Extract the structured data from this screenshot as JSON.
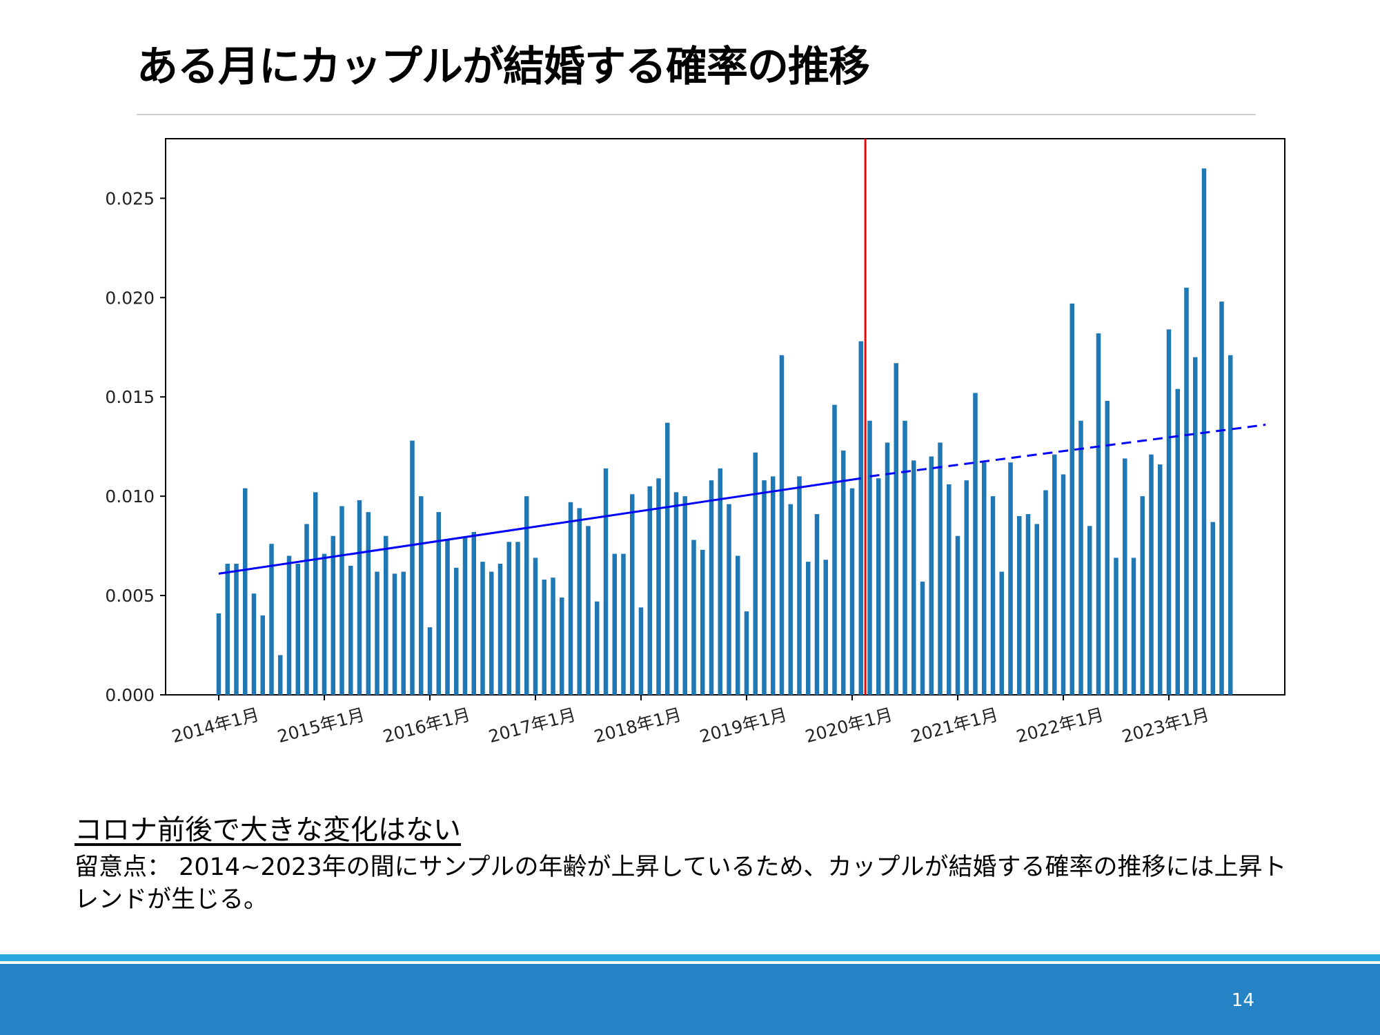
{
  "slide": {
    "title": "ある月にカップルが結婚する確率の推移",
    "note_heading": "コロナ前後で大きな変化はない",
    "note_body": "留意点： 2014~2023年の間にサンプルの年齢が上昇しているため、カップルが結婚する確率の推移には上昇トレンドが生じる。",
    "page_number": "14"
  },
  "colors": {
    "bar": "#1f77b4",
    "trend": "#0000ff",
    "marker_line": "#ff0000",
    "footer_bar": "#2683c6",
    "footer_line": "#29a7e0"
  },
  "chart_data": {
    "type": "bar",
    "title": "",
    "xlabel": "",
    "ylabel": "",
    "ylim": [
      0,
      0.028
    ],
    "yticks": [
      0.0,
      0.005,
      0.01,
      0.015,
      0.02,
      0.025
    ],
    "ytick_labels": [
      "0.000",
      "0.005",
      "0.010",
      "0.015",
      "0.020",
      "0.025"
    ],
    "xticks": [
      "2014年1月",
      "2015年1月",
      "2016年1月",
      "2017年1月",
      "2018年1月",
      "2019年1月",
      "2020年1月",
      "2021年1月",
      "2022年1月",
      "2023年1月"
    ],
    "x_start": "2014-01",
    "values": [
      0.0041,
      0.0066,
      0.0066,
      0.0104,
      0.0051,
      0.004,
      0.0076,
      0.002,
      0.007,
      0.0066,
      0.0086,
      0.0102,
      0.0071,
      0.008,
      0.0095,
      0.0065,
      0.0098,
      0.0092,
      0.0062,
      0.008,
      0.0061,
      0.0062,
      0.0128,
      0.01,
      0.0034,
      0.0092,
      0.0078,
      0.0064,
      0.0079,
      0.0082,
      0.0067,
      0.0062,
      0.0066,
      0.0077,
      0.0077,
      0.01,
      0.0069,
      0.0058,
      0.0059,
      0.0049,
      0.0097,
      0.0094,
      0.0085,
      0.0047,
      0.0114,
      0.0071,
      0.0071,
      0.0101,
      0.0044,
      0.0105,
      0.0109,
      0.0137,
      0.0102,
      0.01,
      0.0078,
      0.0073,
      0.0108,
      0.0114,
      0.0096,
      0.007,
      0.0042,
      0.0122,
      0.0108,
      0.011,
      0.0171,
      0.0096,
      0.011,
      0.0067,
      0.0091,
      0.0068,
      0.0146,
      0.0123,
      0.0104,
      0.0178,
      0.0138,
      0.0109,
      0.0127,
      0.0167,
      0.0138,
      0.0118,
      0.0057,
      0.012,
      0.0127,
      0.0106,
      0.008,
      0.0108,
      0.0152,
      0.0117,
      0.01,
      0.0062,
      0.0117,
      0.009,
      0.0091,
      0.0086,
      0.0103,
      0.0121,
      0.0111,
      0.0197,
      0.0138,
      0.0085,
      0.0182,
      0.0148,
      0.0069,
      0.0119,
      0.0069,
      0.01,
      0.0121,
      0.0116,
      0.0184,
      0.0154,
      0.0205,
      0.017,
      0.0265,
      0.0087,
      0.0198,
      0.0171
    ],
    "vertical_line_after": "2020-02",
    "trend_line": {
      "solid": {
        "from": [
          "2014-01",
          0.0061
        ],
        "to": [
          "2020-02",
          0.0109
        ]
      },
      "dashed": {
        "from": [
          "2020-03",
          0.011
        ],
        "to": [
          "2023-12",
          0.0136
        ]
      }
    },
    "grid": false,
    "legend": "none"
  }
}
